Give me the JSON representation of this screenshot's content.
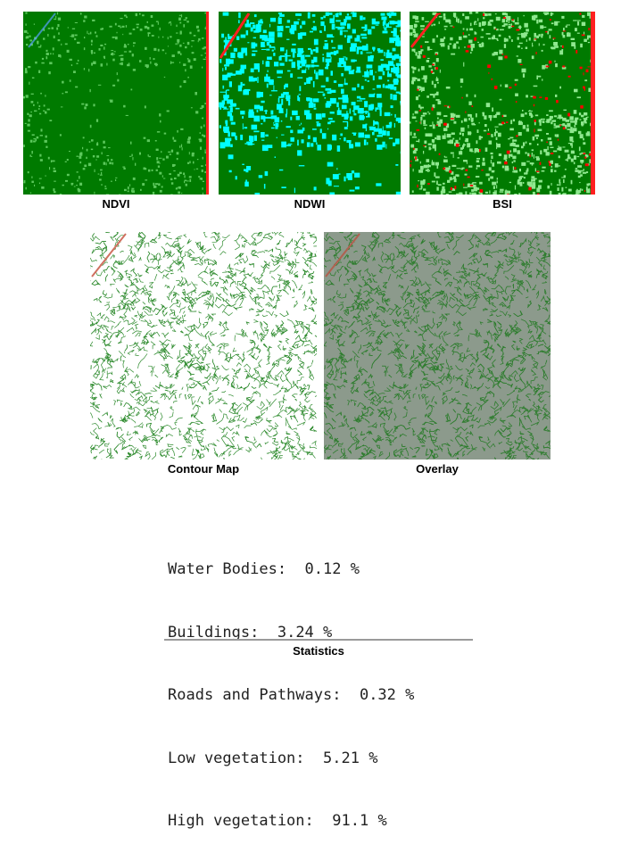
{
  "panels": [
    {
      "caption": "NDVI"
    },
    {
      "caption": "NDWI"
    },
    {
      "caption": "BSI"
    },
    {
      "caption": "Contour Map"
    },
    {
      "caption": "Overlay"
    }
  ],
  "statistics": {
    "rows": [
      {
        "label": "Water Bodies:",
        "value": "0.12",
        "unit": "%"
      },
      {
        "label": "Buildings:",
        "value": "3.24",
        "unit": "%"
      },
      {
        "label": "Roads and Pathways:",
        "value": "0.32",
        "unit": "%"
      },
      {
        "label": "Low vegetation:",
        "value": "5.21",
        "unit": "%"
      },
      {
        "label": "High vegetation:",
        "value": "91.1",
        "unit": "%"
      }
    ],
    "title": "Statistics"
  },
  "colors": {
    "high_vegetation": "#007a00",
    "low_vegetation": "#8fe88f",
    "water": "#00ffff",
    "bare_soil": "#ff0000",
    "contour_line": "#2e8b2e",
    "overlay_base": "#8c9a8c"
  }
}
